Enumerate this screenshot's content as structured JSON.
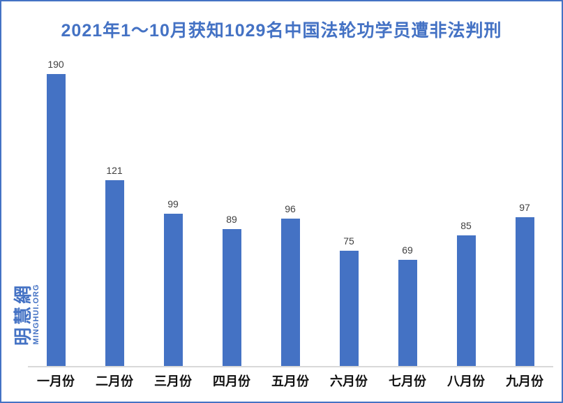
{
  "title": "2021年1～10月获知1029名中国法轮功学员遭非法判刑",
  "watermark": {
    "cjk": "明慧網",
    "latin": "MINGHUI.ORG",
    "color": "#4472C4"
  },
  "colors": {
    "accent_blue": "#4472C4",
    "frame_border": "#4472C4",
    "title_text": "#4472C4",
    "bar_fill": "#4472C4",
    "value_label": "#404040",
    "axis_line": "#D9D9D9",
    "category_label": "#111111",
    "background": "#FFFFFF"
  },
  "chart_data": {
    "type": "bar",
    "title": "2021年1～10月获知1029名中国法轮功学员遭非法判刑",
    "categories": [
      "一月份",
      "二月份",
      "三月份",
      "四月份",
      "五月份",
      "六月份",
      "七月份",
      "八月份",
      "九月份"
    ],
    "values": [
      190,
      121,
      99,
      89,
      96,
      75,
      69,
      85,
      97
    ],
    "series_total_in_title": 1029,
    "xlabel": "",
    "ylabel": "",
    "ylim": [
      0,
      200
    ],
    "grid": false,
    "legend": false,
    "data_labels": true,
    "y_axis_visible": false,
    "bar_color": "#4472C4"
  }
}
